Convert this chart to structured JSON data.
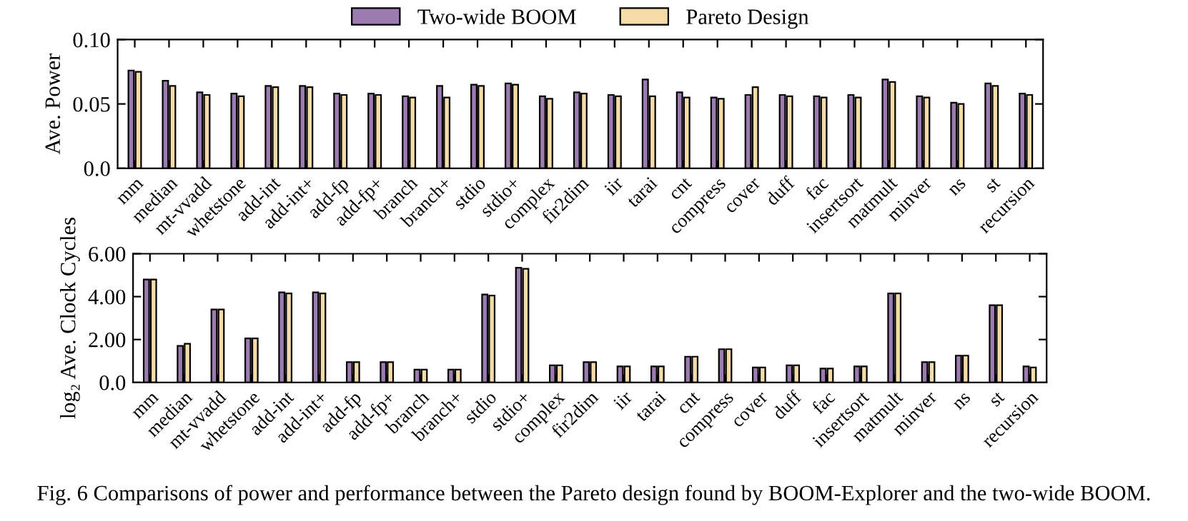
{
  "chart_data": [
    {
      "type": "bar",
      "ylabel": "Ave. Power",
      "legend": "top",
      "grid": false,
      "categories": [
        "mm",
        "median",
        "mt-vvadd",
        "whetstone",
        "add-int",
        "add-int+",
        "add-fp",
        "add-fp+",
        "branch",
        "branch+",
        "stdio",
        "stdio+",
        "complex",
        "fir2dim",
        "iir",
        "tarai",
        "cnt",
        "compress",
        "cover",
        "duff",
        "fac",
        "insertsort",
        "matmult",
        "minver",
        "ns",
        "st",
        "recursion"
      ],
      "ylim": [
        0,
        0.1
      ],
      "yticks": [
        {
          "value": 0,
          "label": "0.0"
        },
        0.05,
        {
          "value": 0.1,
          "label": "0.10"
        }
      ],
      "series": [
        {
          "name": "Two-wide BOOM",
          "color": "#9b7bb0",
          "values": [
            0.076,
            0.068,
            0.059,
            0.058,
            0.064,
            0.064,
            0.058,
            0.058,
            0.056,
            0.064,
            0.065,
            0.066,
            0.056,
            0.059,
            0.057,
            0.069,
            0.059,
            0.055,
            0.057,
            0.057,
            0.056,
            0.057,
            0.069,
            0.056,
            0.051,
            0.066,
            0.058
          ]
        },
        {
          "name": "Pareto Design",
          "color": "#f3dca8",
          "values": [
            0.075,
            0.064,
            0.057,
            0.056,
            0.063,
            0.063,
            0.057,
            0.057,
            0.055,
            0.055,
            0.064,
            0.065,
            0.054,
            0.058,
            0.056,
            0.056,
            0.055,
            0.054,
            0.063,
            0.056,
            0.055,
            0.055,
            0.067,
            0.055,
            0.05,
            0.064,
            0.057
          ]
        }
      ]
    },
    {
      "type": "bar",
      "ylabel": "log₂ Ave. Clock Cycles",
      "grid": false,
      "categories": [
        "mm",
        "median",
        "mt-vvadd",
        "whetstone",
        "add-int",
        "add-int+",
        "add-fp",
        "add-fp+",
        "branch",
        "branch+",
        "stdio",
        "stdio+",
        "complex",
        "fir2dim",
        "iir",
        "tarai",
        "cnt",
        "compress",
        "cover",
        "duff",
        "fac",
        "insertsort",
        "matmult",
        "minver",
        "ns",
        "st",
        "recursion"
      ],
      "ylim": [
        0,
        6
      ],
      "yticks": [
        {
          "value": 0,
          "label": "0.0"
        },
        {
          "value": 2,
          "label": "2.00"
        },
        {
          "value": 4,
          "label": "4.00"
        },
        {
          "value": 6,
          "label": "6.00"
        }
      ],
      "annotations": [
        "Fig. 6 Comparisons of power and performance between the Pareto design found by BOOM-Explorer and the two-wide BOOM."
      ],
      "series": [
        {
          "color": "#9b7bb0",
          "values": [
            4.8,
            1.7,
            3.4,
            2.05,
            4.2,
            4.2,
            0.95,
            0.95,
            0.6,
            0.6,
            4.1,
            5.35,
            0.8,
            0.95,
            0.75,
            0.75,
            1.2,
            1.55,
            0.7,
            0.8,
            0.65,
            0.75,
            4.15,
            0.95,
            1.25,
            3.6,
            0.75
          ]
        },
        {
          "color": "#f3dca8",
          "values": [
            4.8,
            1.8,
            3.4,
            2.05,
            4.15,
            4.15,
            0.95,
            0.95,
            0.6,
            0.6,
            4.05,
            5.3,
            0.8,
            0.95,
            0.75,
            0.75,
            1.2,
            1.55,
            0.7,
            0.8,
            0.65,
            0.75,
            4.15,
            0.95,
            1.25,
            3.6,
            0.7
          ]
        }
      ]
    }
  ]
}
